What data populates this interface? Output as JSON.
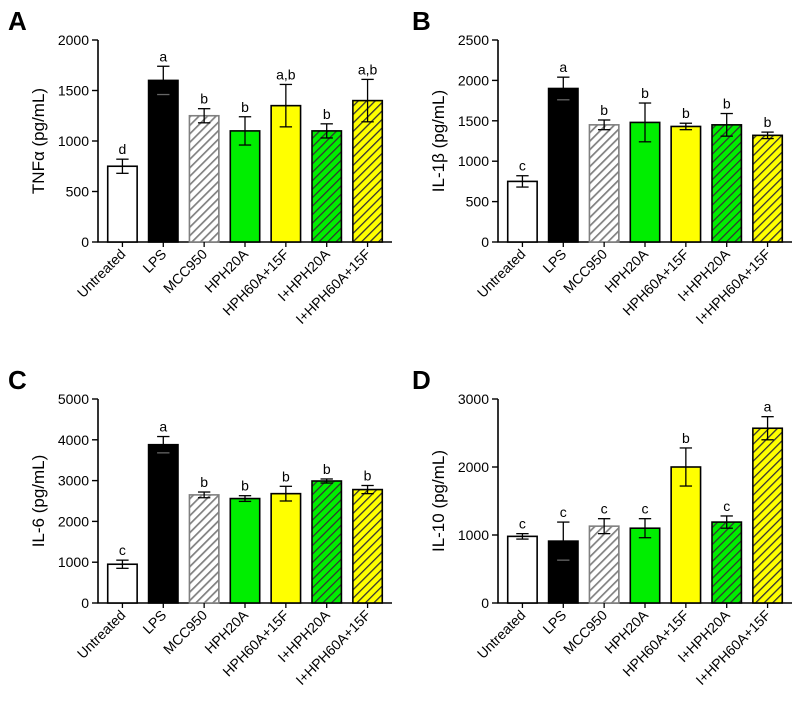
{
  "colors": {
    "untreated": "#ffffff",
    "lps": "#000000",
    "mcc950_hatch": "#808080",
    "green": "#00ee00",
    "yellow": "#ffff00",
    "hatch_line": "#333333",
    "axis": "#000000"
  },
  "chart_data": [
    {
      "panel": "A",
      "type": "bar",
      "ylabel": "TNFα (pg/mL)",
      "ylim": [
        0,
        2000
      ],
      "yticks": [
        0,
        500,
        1000,
        1500,
        2000
      ],
      "categories": [
        "Untreated",
        "LPS",
        "MCC950",
        "HPH20A",
        "HPH60A+15F",
        "I+HPH20A",
        "I+HPH60A+15F"
      ],
      "values": [
        750,
        1600,
        1250,
        1100,
        1350,
        1100,
        1400
      ],
      "errors": [
        70,
        140,
        70,
        140,
        210,
        70,
        210
      ],
      "letters": [
        "d",
        "a",
        "b",
        "b",
        "a,b",
        "b",
        "a,b"
      ],
      "fills": [
        "white",
        "black",
        "gray-hatch",
        "green",
        "yellow",
        "green-hatch",
        "yellow-hatch"
      ]
    },
    {
      "panel": "B",
      "type": "bar",
      "ylabel": "IL-1β (pg/mL)",
      "ylim": [
        0,
        2500
      ],
      "yticks": [
        0,
        500,
        1000,
        1500,
        2000,
        2500
      ],
      "categories": [
        "Untreated",
        "LPS",
        "MCC950",
        "HPH20A",
        "HPH60A+15F",
        "I+HPH20A",
        "I+HPH60A+15F"
      ],
      "values": [
        750,
        1900,
        1450,
        1480,
        1430,
        1450,
        1320
      ],
      "errors": [
        70,
        140,
        60,
        240,
        40,
        140,
        40
      ],
      "letters": [
        "c",
        "a",
        "b",
        "b",
        "b",
        "b",
        "b"
      ],
      "fills": [
        "white",
        "black",
        "gray-hatch",
        "green",
        "yellow",
        "green-hatch",
        "yellow-hatch"
      ]
    },
    {
      "panel": "C",
      "type": "bar",
      "ylabel": "IL-6 (pg/mL)",
      "ylim": [
        0,
        5000
      ],
      "yticks": [
        0,
        1000,
        2000,
        3000,
        4000,
        5000
      ],
      "categories": [
        "Untreated",
        "LPS",
        "MCC950",
        "HPH20A",
        "HPH60A+15F",
        "I+HPH20A",
        "I+HPH60A+15F"
      ],
      "values": [
        950,
        3880,
        2650,
        2560,
        2680,
        2990,
        2780
      ],
      "errors": [
        100,
        200,
        70,
        70,
        180,
        50,
        100
      ],
      "letters": [
        "c",
        "a",
        "b",
        "b",
        "b",
        "b",
        "b"
      ],
      "fills": [
        "white",
        "black",
        "gray-hatch",
        "green",
        "yellow",
        "green-hatch",
        "yellow-hatch"
      ]
    },
    {
      "panel": "D",
      "type": "bar",
      "ylabel": "IL-10 (pg/mL)",
      "ylim": [
        0,
        3000
      ],
      "yticks": [
        0,
        1000,
        2000,
        3000
      ],
      "categories": [
        "Untreated",
        "LPS",
        "MCC950",
        "HPH20A",
        "HPH60A+15F",
        "I+HPH20A",
        "I+HPH60A+15F"
      ],
      "values": [
        980,
        910,
        1130,
        1100,
        2000,
        1190,
        2570
      ],
      "errors": [
        40,
        280,
        110,
        140,
        280,
        90,
        170
      ],
      "letters": [
        "c",
        "c",
        "c",
        "c",
        "b",
        "c",
        "a"
      ],
      "fills": [
        "white",
        "black",
        "gray-hatch",
        "green",
        "yellow",
        "green-hatch",
        "yellow-hatch"
      ]
    }
  ]
}
